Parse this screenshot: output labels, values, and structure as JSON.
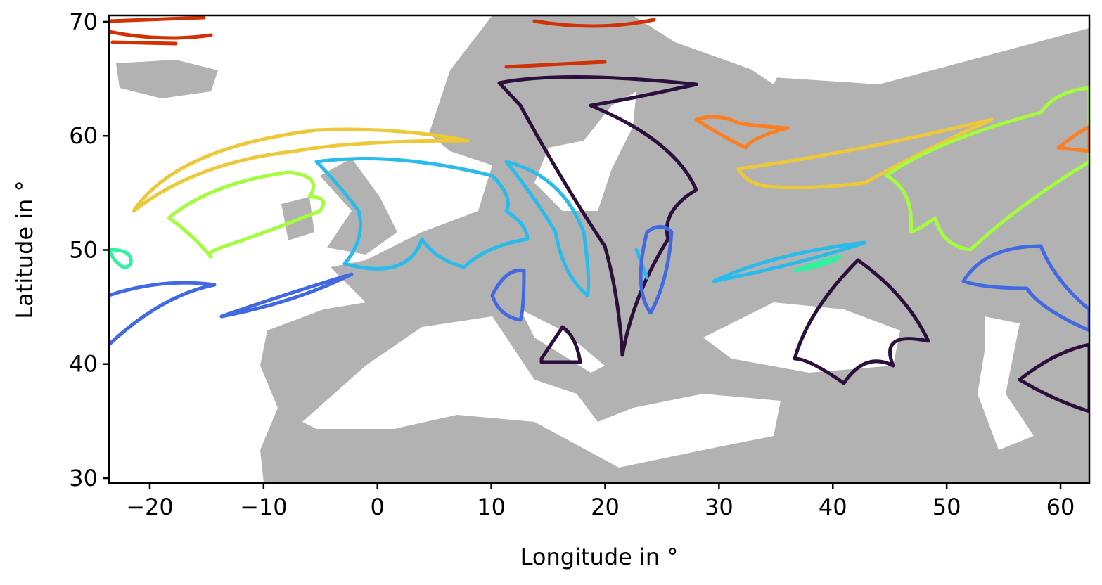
{
  "chart_data": {
    "type": "map",
    "xlabel": "Longitude in °",
    "ylabel": "Latitude in °",
    "xlim": [
      -23.58,
      62.53
    ],
    "ylim": [
      29.57,
      70.55
    ],
    "xticks": [
      {
        "value": -20,
        "label": "−20"
      },
      {
        "value": -10,
        "label": "−10"
      },
      0,
      10,
      20,
      30,
      40,
      50,
      60
    ],
    "yticks": [
      30,
      40,
      50,
      60,
      70
    ]
  }
}
